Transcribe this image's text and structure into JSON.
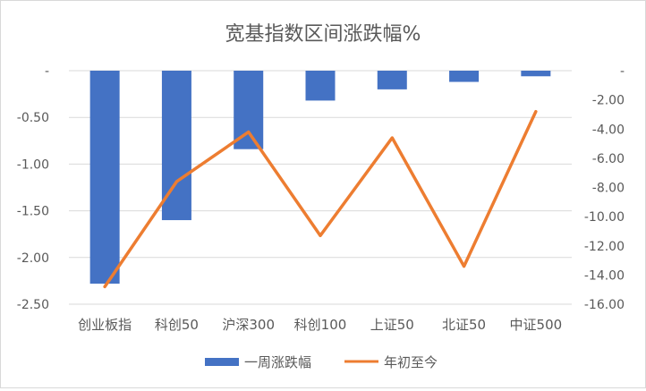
{
  "chart_data": {
    "type": "bar+line",
    "title": "宽基指数区间涨跌幅%",
    "categories": [
      "创业板指",
      "科创50",
      "沪深300",
      "科创100",
      "上证50",
      "北证50",
      "中证500"
    ],
    "series": [
      {
        "name": "一周涨跌幅",
        "type": "bar",
        "axis": "left",
        "color": "#4472C4",
        "values": [
          -2.28,
          -1.6,
          -0.84,
          -0.32,
          -0.2,
          -0.12,
          -0.06
        ]
      },
      {
        "name": "年初至今",
        "type": "line",
        "axis": "right",
        "color": "#ED7D31",
        "values": [
          -14.8,
          -7.6,
          -4.2,
          -11.3,
          -4.6,
          -13.4,
          -2.8
        ]
      }
    ],
    "left_axis": {
      "ylim": [
        -2.5,
        0
      ],
      "ticks": [
        0,
        -0.5,
        -1.0,
        -1.5,
        -2.0,
        -2.5
      ],
      "tick_labels": [
        "-",
        "-0.50",
        "-1.00",
        "-1.50",
        "-2.00",
        "-2.50"
      ]
    },
    "right_axis": {
      "ylim": [
        -16,
        0
      ],
      "ticks": [
        0,
        -2,
        -4,
        -6,
        -8,
        -10,
        -12,
        -14,
        -16
      ],
      "tick_labels": [
        "-",
        "-2.00",
        "-4.00",
        "-6.00",
        "-8.00",
        "-10.00",
        "-12.00",
        "-14.00",
        "-16.00"
      ]
    },
    "grid": true,
    "legend": "bottom"
  }
}
